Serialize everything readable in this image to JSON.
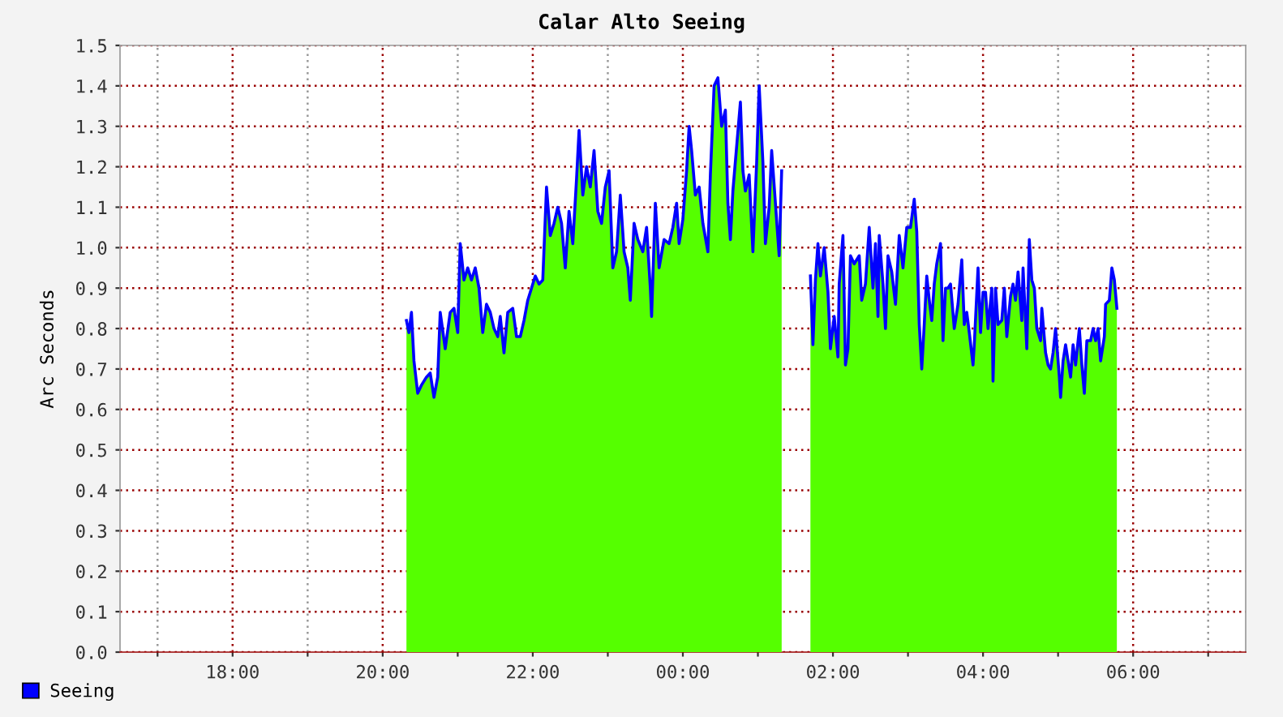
{
  "chart_data": {
    "type": "area",
    "title": "Calar Alto Seeing",
    "ylabel": "Arc Seconds",
    "xlim": [
      "2000-01-01T16:30",
      "2000-01-02T07:30"
    ],
    "ylim": [
      0,
      1.5
    ],
    "xticks": [
      {
        "value": "2000-01-01T17:00",
        "label": null
      },
      {
        "value": "2000-01-01T18:00",
        "label": "18:00"
      },
      {
        "value": "2000-01-01T19:00",
        "label": null
      },
      {
        "value": "2000-01-01T20:00",
        "label": "20:00"
      },
      {
        "value": "2000-01-01T21:00",
        "label": null
      },
      {
        "value": "2000-01-01T22:00",
        "label": "22:00"
      },
      {
        "value": "2000-01-01T23:00",
        "label": null
      },
      {
        "value": "2000-01-02T00:00",
        "label": "00:00"
      },
      {
        "value": "2000-01-02T01:00",
        "label": null
      },
      {
        "value": "2000-01-02T02:00",
        "label": "02:00"
      },
      {
        "value": "2000-01-02T03:00",
        "label": null
      },
      {
        "value": "2000-01-02T04:00",
        "label": "04:00"
      },
      {
        "value": "2000-01-02T05:00",
        "label": null
      },
      {
        "value": "2000-01-02T06:00",
        "label": "06:00"
      },
      {
        "value": "2000-01-02T07:00",
        "label": null
      }
    ],
    "yticks": [
      {
        "value": 0,
        "label": "0.0"
      },
      {
        "value": 0.1,
        "label": "0.1"
      },
      {
        "value": 0.2,
        "label": "0.2"
      },
      {
        "value": 0.3,
        "label": "0.3"
      },
      {
        "value": 0.4,
        "label": "0.4"
      },
      {
        "value": 0.5,
        "label": "0.5"
      },
      {
        "value": 0.6,
        "label": "0.6"
      },
      {
        "value": 0.7,
        "label": "0.7"
      },
      {
        "value": 0.8,
        "label": "0.8"
      },
      {
        "value": 0.9,
        "label": "0.9"
      },
      {
        "value": 1.0,
        "label": "1.0"
      },
      {
        "value": 1.1,
        "label": "1.1"
      },
      {
        "value": 1.2,
        "label": "1.2"
      },
      {
        "value": 1.3,
        "label": "1.3"
      },
      {
        "value": 1.4,
        "label": "1.4"
      },
      {
        "value": 1.5,
        "label": "1.5"
      }
    ],
    "grid": true,
    "legend": "bottom left",
    "x": [
      "2000-01-01T20:19",
      "2000-01-01T20:21",
      "2000-01-01T20:23",
      "2000-01-01T20:25",
      "2000-01-01T20:28",
      "2000-01-01T20:31",
      "2000-01-01T20:35",
      "2000-01-01T20:38",
      "2000-01-01T20:41",
      "2000-01-01T20:44",
      "2000-01-01T20:46",
      "2000-01-01T20:50",
      "2000-01-01T20:54",
      "2000-01-01T20:57",
      "2000-01-01T21:00",
      "2000-01-01T21:02",
      "2000-01-01T21:05",
      "2000-01-01T21:08",
      "2000-01-01T21:11",
      "2000-01-01T21:14",
      "2000-01-01T21:17",
      "2000-01-01T21:20",
      "2000-01-01T21:23",
      "2000-01-01T21:26",
      "2000-01-01T21:29",
      "2000-01-01T21:32",
      "2000-01-01T21:34",
      "2000-01-01T21:37",
      "2000-01-01T21:40",
      "2000-01-01T21:44",
      "2000-01-01T21:47",
      "2000-01-01T21:50",
      "2000-01-01T21:53",
      "2000-01-01T21:56",
      "2000-01-01T21:59",
      "2000-01-01T22:02",
      "2000-01-01T22:05",
      "2000-01-01T22:08",
      "2000-01-01T22:11",
      "2000-01-01T22:14",
      "2000-01-01T22:17",
      "2000-01-01T22:20",
      "2000-01-01T22:23",
      "2000-01-01T22:26",
      "2000-01-01T22:29",
      "2000-01-01T22:32",
      "2000-01-01T22:35",
      "2000-01-01T22:37",
      "2000-01-01T22:40",
      "2000-01-01T22:43",
      "2000-01-01T22:46",
      "2000-01-01T22:49",
      "2000-01-01T22:52",
      "2000-01-01T22:55",
      "2000-01-01T22:58",
      "2000-01-01T23:01",
      "2000-01-01T23:04",
      "2000-01-01T23:07",
      "2000-01-01T23:10",
      "2000-01-01T23:13",
      "2000-01-01T23:16",
      "2000-01-01T23:18",
      "2000-01-01T23:21",
      "2000-01-01T23:24",
      "2000-01-01T23:28",
      "2000-01-01T23:31",
      "2000-01-01T23:34",
      "2000-01-01T23:35",
      "2000-01-01T23:38",
      "2000-01-01T23:41",
      "2000-01-01T23:45",
      "2000-01-01T23:49",
      "2000-01-01T23:52",
      "2000-01-01T23:55",
      "2000-01-01T23:57",
      "2000-01-02T00:00",
      "2000-01-02T00:03",
      "2000-01-02T00:05",
      "2000-01-02T00:07",
      "2000-01-02T00:10",
      "2000-01-02T00:13",
      "2000-01-02T00:16",
      "2000-01-02T00:20",
      "2000-01-02T00:22",
      "2000-01-02T00:25",
      "2000-01-02T00:28",
      "2000-01-02T00:31",
      "2000-01-02T00:34",
      "2000-01-02T00:36",
      "2000-01-02T00:38",
      "2000-01-02T00:40",
      "2000-01-02T00:43",
      "2000-01-02T00:46",
      "2000-01-02T00:48",
      "2000-01-02T00:50",
      "2000-01-02T00:53",
      "2000-01-02T00:56",
      "2000-01-02T00:59",
      "2000-01-02T01:01",
      "2000-01-02T01:04",
      "2000-01-02T01:06",
      "2000-01-02T01:09",
      "2000-01-02T01:11",
      "2000-01-02T01:14",
      "2000-01-02T01:17",
      "2000-01-02T01:19",
      "2000-01-02T01:30",
      "2000-01-02T01:42",
      "2000-01-02T01:44",
      "2000-01-02T01:46",
      "2000-01-02T01:48",
      "2000-01-02T01:50",
      "2000-01-02T01:53",
      "2000-01-02T01:56",
      "2000-01-02T01:58",
      "2000-01-02T02:01",
      "2000-01-02T02:04",
      "2000-01-02T02:05",
      "2000-01-02T02:08",
      "2000-01-02T02:10",
      "2000-01-02T02:12",
      "2000-01-02T02:14",
      "2000-01-02T02:17",
      "2000-01-02T02:21",
      "2000-01-02T02:23",
      "2000-01-02T02:26",
      "2000-01-02T02:29",
      "2000-01-02T02:32",
      "2000-01-02T02:34",
      "2000-01-02T02:36",
      "2000-01-02T02:37",
      "2000-01-02T02:40",
      "2000-01-02T02:42",
      "2000-01-02T02:44",
      "2000-01-02T02:47",
      "2000-01-02T02:50",
      "2000-01-02T02:53",
      "2000-01-02T02:56",
      "2000-01-02T02:59",
      "2000-01-02T03:02",
      "2000-01-02T03:05",
      "2000-01-02T03:07",
      "2000-01-02T03:09",
      "2000-01-02T03:11",
      "2000-01-02T03:13",
      "2000-01-02T03:15",
      "2000-01-02T03:17",
      "2000-01-02T03:19",
      "2000-01-02T03:21",
      "2000-01-02T03:23",
      "2000-01-02T03:26",
      "2000-01-02T03:28",
      "2000-01-02T03:30",
      "2000-01-02T03:32",
      "2000-01-02T03:34",
      "2000-01-02T03:37",
      "2000-01-02T03:40",
      "2000-01-02T03:43",
      "2000-01-02T03:45",
      "2000-01-02T03:47",
      "2000-01-02T03:49",
      "2000-01-02T03:52",
      "2000-01-02T03:53",
      "2000-01-02T03:56",
      "2000-01-02T03:58",
      "2000-01-02T04:00",
      "2000-01-02T04:02",
      "2000-01-02T04:04",
      "2000-01-02T04:07",
      "2000-01-02T04:08",
      "2000-01-02T04:10",
      "2000-01-02T04:12",
      "2000-01-02T04:15",
      "2000-01-02T04:17",
      "2000-01-02T04:19",
      "2000-01-02T04:22",
      "2000-01-02T04:24",
      "2000-01-02T04:26",
      "2000-01-02T04:28",
      "2000-01-02T04:31",
      "2000-01-02T04:32",
      "2000-01-02T04:35",
      "2000-01-02T04:37",
      "2000-01-02T04:39",
      "2000-01-02T04:41",
      "2000-01-02T04:43",
      "2000-01-02T04:46",
      "2000-01-02T04:47",
      "2000-01-02T04:50",
      "2000-01-02T04:52",
      "2000-01-02T04:54",
      "2000-01-02T04:56",
      "2000-01-02T04:58",
      "2000-01-02T05:01",
      "2000-01-02T05:02",
      "2000-01-02T05:04",
      "2000-01-02T05:06",
      "2000-01-02T05:08",
      "2000-01-02T05:10",
      "2000-01-02T05:12",
      "2000-01-02T05:14",
      "2000-01-02T05:17",
      "2000-01-02T05:19",
      "2000-01-02T05:21",
      "2000-01-02T05:23",
      "2000-01-02T05:26",
      "2000-01-02T05:28",
      "2000-01-02T05:30",
      "2000-01-02T05:32",
      "2000-01-02T05:34",
      "2000-01-02T05:37",
      "2000-01-02T05:38",
      "2000-01-02T05:41",
      "2000-01-02T05:43",
      "2000-01-02T05:45",
      "2000-01-02T05:47"
    ],
    "series": [
      {
        "color": "#55ff00",
        "values": [
          0.82,
          0.79,
          0.84,
          0.72,
          0.64,
          0.66,
          0.68,
          0.69,
          0.63,
          0.68,
          0.84,
          0.75,
          0.84,
          0.85,
          0.79,
          1.01,
          0.92,
          0.95,
          0.92,
          0.95,
          0.9,
          0.79,
          0.86,
          0.84,
          0.8,
          0.78,
          0.83,
          0.74,
          0.84,
          0.85,
          0.78,
          0.78,
          0.82,
          0.87,
          0.9,
          0.93,
          0.91,
          0.92,
          1.15,
          1.03,
          1.06,
          1.1,
          1.06,
          0.95,
          1.09,
          1.01,
          1.17,
          1.29,
          1.13,
          1.2,
          1.15,
          1.24,
          1.09,
          1.06,
          1.15,
          1.19,
          0.95,
          0.99,
          1.13,
          0.99,
          0.95,
          0.87,
          1.06,
          1.02,
          0.99,
          1.05,
          0.9,
          0.83,
          1.11,
          0.95,
          1.02,
          1.01,
          1.05,
          1.11,
          1.01,
          1.07,
          1.19,
          1.3,
          1.24,
          1.13,
          1.15,
          1.06,
          0.99,
          1.18,
          1.4,
          1.42,
          1.3,
          1.34,
          1.11,
          1.02,
          1.14,
          1.25,
          1.36,
          1.19,
          1.14,
          1.18,
          0.99,
          1.21,
          1.4,
          1.21,
          1.01,
          1.1,
          1.24,
          1.11,
          0.98,
          1.19,
          null,
          0.93,
          0.76,
          0.92,
          1.01,
          0.93,
          1.0,
          0.89,
          0.75,
          0.83,
          0.73,
          0.91,
          1.03,
          0.71,
          0.75,
          0.98,
          0.96,
          0.98,
          0.87,
          0.91,
          1.05,
          0.9,
          1.01,
          0.83,
          1.03,
          0.91,
          0.8,
          0.98,
          0.94,
          0.86,
          1.03,
          0.95,
          1.05,
          1.05,
          1.12,
          1.04,
          0.81,
          0.7,
          0.81,
          0.93,
          0.87,
          0.82,
          0.91,
          0.96,
          1.01,
          0.77,
          0.9,
          0.9,
          0.91,
          0.8,
          0.86,
          0.97,
          0.81,
          0.84,
          0.79,
          0.71,
          0.76,
          0.95,
          0.79,
          0.89,
          0.89,
          0.8,
          0.9,
          0.67,
          0.9,
          0.81,
          0.82,
          0.9,
          0.78,
          0.88,
          0.91,
          0.87,
          0.94,
          0.82,
          0.95,
          0.75,
          1.02,
          0.92,
          0.9,
          0.8,
          0.77,
          0.85,
          0.74,
          0.71,
          0.7,
          0.74,
          0.8,
          0.68,
          0.63,
          0.72,
          0.76,
          0.72,
          0.68,
          0.76,
          0.71,
          0.8,
          0.71,
          0.64,
          0.77,
          0.77,
          0.8,
          0.77,
          0.8,
          0.72,
          0.78,
          0.86,
          0.87,
          0.95,
          0.92,
          0.85
        ]
      },
      {
        "type": "line",
        "name": "Seeing",
        "color": "#0000ff",
        "values": [
          0.82,
          0.79,
          0.84,
          0.72,
          0.64,
          0.66,
          0.68,
          0.69,
          0.63,
          0.68,
          0.84,
          0.75,
          0.84,
          0.85,
          0.79,
          1.01,
          0.92,
          0.95,
          0.92,
          0.95,
          0.9,
          0.79,
          0.86,
          0.84,
          0.8,
          0.78,
          0.83,
          0.74,
          0.84,
          0.85,
          0.78,
          0.78,
          0.82,
          0.87,
          0.9,
          0.93,
          0.91,
          0.92,
          1.15,
          1.03,
          1.06,
          1.1,
          1.06,
          0.95,
          1.09,
          1.01,
          1.17,
          1.29,
          1.13,
          1.2,
          1.15,
          1.24,
          1.09,
          1.06,
          1.15,
          1.19,
          0.95,
          0.99,
          1.13,
          0.99,
          0.95,
          0.87,
          1.06,
          1.02,
          0.99,
          1.05,
          0.9,
          0.83,
          1.11,
          0.95,
          1.02,
          1.01,
          1.05,
          1.11,
          1.01,
          1.07,
          1.19,
          1.3,
          1.24,
          1.13,
          1.15,
          1.06,
          0.99,
          1.18,
          1.4,
          1.42,
          1.3,
          1.34,
          1.11,
          1.02,
          1.14,
          1.25,
          1.36,
          1.19,
          1.14,
          1.18,
          0.99,
          1.21,
          1.4,
          1.21,
          1.01,
          1.1,
          1.24,
          1.11,
          0.98,
          1.19,
          null,
          0.93,
          0.76,
          0.92,
          1.01,
          0.93,
          1.0,
          0.89,
          0.75,
          0.83,
          0.73,
          0.91,
          1.03,
          0.71,
          0.75,
          0.98,
          0.96,
          0.98,
          0.87,
          0.91,
          1.05,
          0.9,
          1.01,
          0.83,
          1.03,
          0.91,
          0.8,
          0.98,
          0.94,
          0.86,
          1.03,
          0.95,
          1.05,
          1.05,
          1.12,
          1.04,
          0.81,
          0.7,
          0.81,
          0.93,
          0.87,
          0.82,
          0.91,
          0.96,
          1.01,
          0.77,
          0.9,
          0.9,
          0.91,
          0.8,
          0.86,
          0.97,
          0.81,
          0.84,
          0.79,
          0.71,
          0.76,
          0.95,
          0.79,
          0.89,
          0.89,
          0.8,
          0.9,
          0.67,
          0.9,
          0.81,
          0.82,
          0.9,
          0.78,
          0.88,
          0.91,
          0.87,
          0.94,
          0.82,
          0.95,
          0.75,
          1.02,
          0.92,
          0.9,
          0.8,
          0.77,
          0.85,
          0.74,
          0.71,
          0.7,
          0.74,
          0.8,
          0.68,
          0.63,
          0.72,
          0.76,
          0.72,
          0.68,
          0.76,
          0.71,
          0.8,
          0.71,
          0.64,
          0.77,
          0.77,
          0.8,
          0.77,
          0.8,
          0.72,
          0.78,
          0.86,
          0.87,
          0.95,
          0.92,
          0.85
        ]
      }
    ]
  }
}
